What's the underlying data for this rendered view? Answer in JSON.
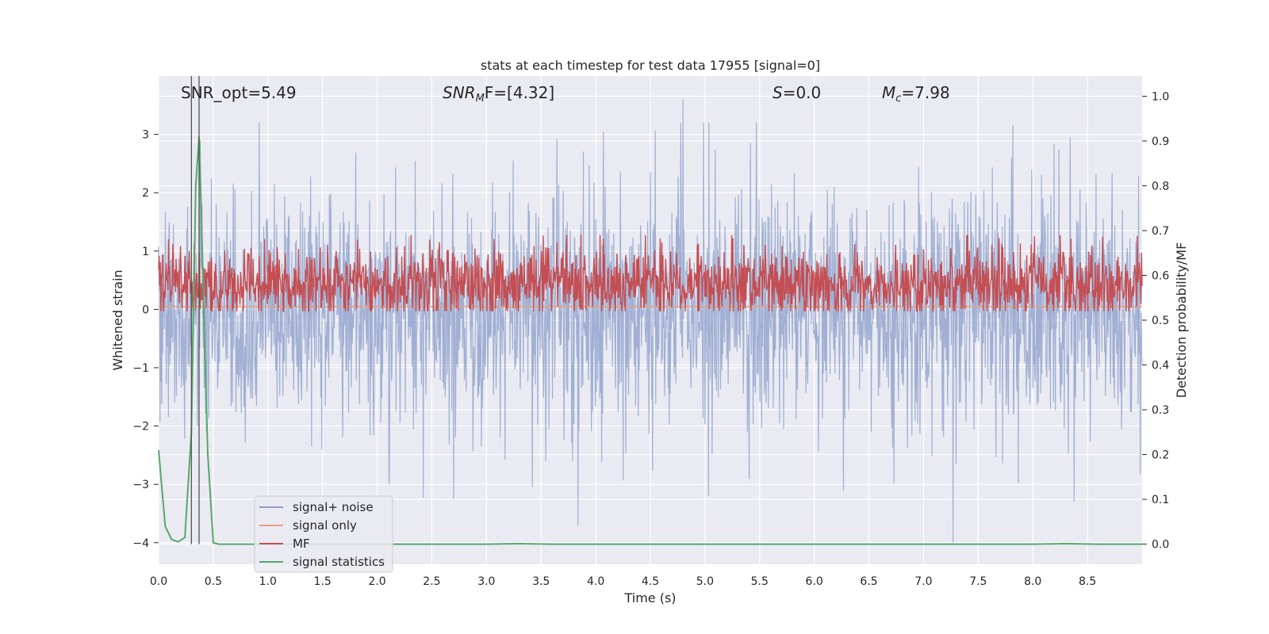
{
  "chart_data": {
    "type": "line",
    "title": "stats at each timestep for test data 17955 [signal=0]",
    "xlabel": "Time (s)",
    "ylabel": "Whitened strain",
    "y2label": "Detection probability/MF",
    "xlim": [
      0,
      9.0
    ],
    "ylim": [
      -4.37,
      4.0
    ],
    "y2lim": [
      -0.045,
      1.045
    ],
    "x_ticks": [
      0.0,
      0.5,
      1.0,
      1.5,
      2.0,
      2.5,
      3.0,
      3.5,
      4.0,
      4.5,
      5.0,
      5.5,
      6.0,
      6.5,
      7.0,
      7.5,
      8.0,
      8.5
    ],
    "x_tick_labels": [
      "0.0",
      "0.5",
      "1.0",
      "1.5",
      "2.0",
      "2.5",
      "3.0",
      "3.5",
      "4.0",
      "4.5",
      "5.0",
      "5.5",
      "6.0",
      "6.5",
      "7.0",
      "7.5",
      "8.0",
      "8.5"
    ],
    "y_ticks": [
      3,
      2,
      1,
      0,
      -1,
      -2,
      -3,
      -4
    ],
    "y_tick_labels": [
      "3",
      "2",
      "1",
      "0",
      "−1",
      "−2",
      "−3",
      "−4"
    ],
    "y2_ticks": [
      1.0,
      0.9,
      0.8,
      0.7,
      0.6,
      0.5,
      0.4,
      0.3,
      0.2,
      0.1,
      0.0
    ],
    "y2_tick_labels": [
      "1.0",
      "0.9",
      "0.8",
      "0.7",
      "0.6",
      "0.5",
      "0.4",
      "0.3",
      "0.2",
      "0.1",
      "0.0"
    ],
    "annotations": {
      "snr_opt": "SNR_opt=5.49",
      "snr_mf_name": "SNR",
      "snr_mf_sub": "M",
      "snr_mf_rest": "F=[4.32]",
      "s_name": "S",
      "s_rest": "=0.0",
      "mc_name": "M",
      "mc_sub": "c",
      "mc_rest": "=7.98"
    },
    "vertical_lines_x": [
      0.3,
      0.37
    ],
    "legend": {
      "position": "lower-left",
      "entries": [
        {
          "label": "signal+ noise",
          "color": "#8da0cb"
        },
        {
          "label": "signal only",
          "color": "#e8a07f"
        },
        {
          "label": "MF",
          "color": "#c44e52"
        },
        {
          "label": "signal statistics",
          "color": "#55a868"
        }
      ]
    },
    "series": [
      {
        "name": "signal+ noise",
        "axis": "left",
        "style": "dense noise band",
        "x_range": [
          0,
          9.0
        ],
        "core_band": [
          -1.6,
          1.6
        ],
        "approx_range": [
          -4.0,
          3.6
        ],
        "peak_extrema": [
          {
            "x": 0.38,
            "y": 2.9
          },
          {
            "x": 4.8,
            "y": 3.6
          },
          {
            "x": 2.7,
            "y": -3.25
          },
          {
            "x": 5.03,
            "y": -3.2
          },
          {
            "x": 7.27,
            "y": -4.0
          },
          {
            "x": 8.38,
            "y": -3.3
          }
        ]
      },
      {
        "name": "signal only",
        "axis": "left",
        "x": [
          0,
          9.0
        ],
        "y": [
          0.05,
          0.05
        ]
      },
      {
        "name": "MF",
        "axis": "right",
        "style": "dense noise band",
        "x_range": [
          0,
          9.0
        ],
        "core_band": [
          0.53,
          0.63
        ],
        "approx_range": [
          0.52,
          0.69
        ]
      },
      {
        "name": "signal statistics",
        "axis": "right",
        "x": [
          0.0,
          0.06,
          0.12,
          0.18,
          0.24,
          0.3,
          0.34,
          0.37,
          0.39,
          0.42,
          0.45,
          0.5,
          0.55,
          1.0,
          2.0,
          3.0,
          3.3,
          3.6,
          4.0,
          5.0,
          6.0,
          7.0,
          8.0,
          8.3,
          8.6,
          9.0
        ],
        "y": [
          0.21,
          0.04,
          0.01,
          0.005,
          0.015,
          0.25,
          0.8,
          0.91,
          0.75,
          0.45,
          0.2,
          0.003,
          0.0,
          0.0,
          0.0,
          0.0,
          0.001,
          0.0,
          0.0,
          0.0,
          0.0,
          0.0,
          0.0,
          0.001,
          0.0,
          0.0
        ]
      }
    ]
  }
}
